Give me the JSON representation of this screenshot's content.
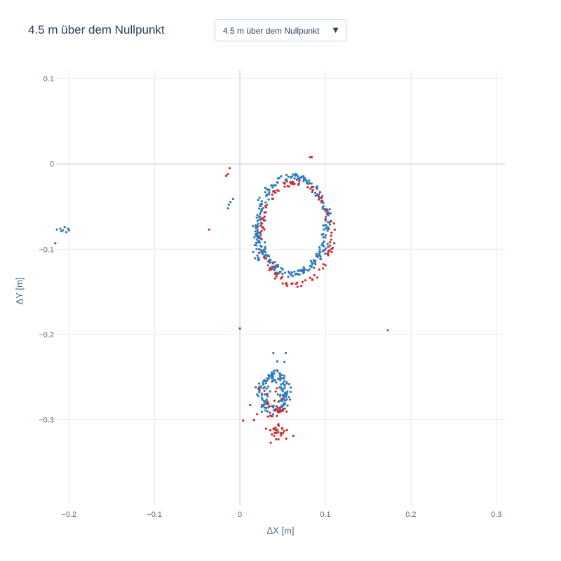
{
  "header": {
    "title": "4.5 m über dem Nullpunkt",
    "dropdown_value": "4.5 m über dem Nullpunkt",
    "dropdown_arrow": "▼"
  },
  "chart_data": {
    "type": "scatter",
    "title": "4.5 m über dem Nullpunkt",
    "xlabel": "ΔX [m]",
    "ylabel": "ΔY [m]",
    "xlim": [
      -0.215,
      0.31
    ],
    "ylim": [
      -0.4,
      0.11
    ],
    "grid": true,
    "xticks": [
      -0.2,
      -0.1,
      0,
      0.1,
      0.2,
      0.3
    ],
    "xtick_labels": [
      "−0.2",
      "−0.1",
      "0",
      "0.1",
      "0.2",
      "0.3"
    ],
    "yticks": [
      0.1,
      0,
      -0.1,
      -0.2,
      -0.3
    ],
    "ytick_labels": [
      "0.1",
      "0",
      "−0.1",
      "−0.2",
      "−0.3"
    ],
    "series": [
      {
        "name": "blue",
        "color": "#2f7ab7",
        "points": []
      },
      {
        "name": "red",
        "color": "#d62728",
        "points": []
      }
    ]
  }
}
